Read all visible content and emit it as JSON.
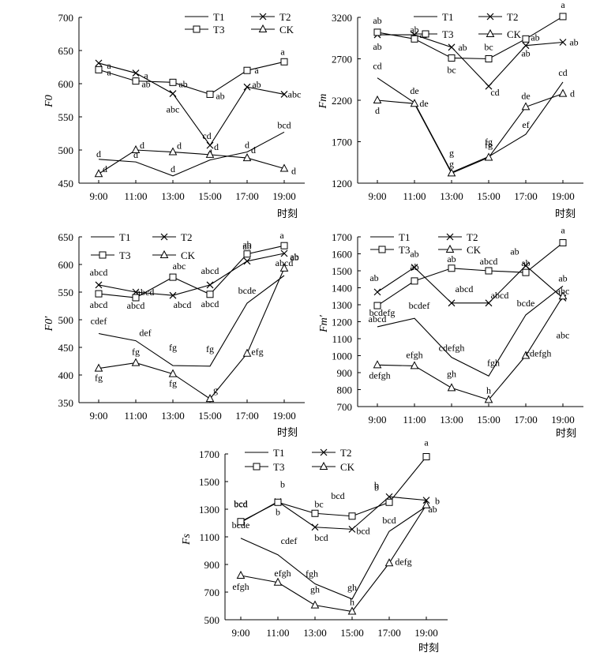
{
  "legend_labels": {
    "T1": "T1",
    "T2": "T2",
    "T3": "T3",
    "CK": "CK"
  },
  "chart_data": [
    {
      "type": "line",
      "ylabel": "F0",
      "xlabel": "时刻",
      "categories": [
        "9:00",
        "11:00",
        "13:00",
        "15:00",
        "17:00",
        "19:00"
      ],
      "ylim": [
        450,
        700
      ],
      "yticks": [
        450,
        500,
        550,
        600,
        650,
        700
      ],
      "legend_position": "top-right",
      "series": [
        {
          "name": "T1",
          "marker": "none",
          "values": [
            486,
            482,
            461,
            485,
            497,
            527
          ],
          "labels": [
            "d",
            "d",
            "d",
            "d",
            "d",
            "bcd"
          ]
        },
        {
          "name": "T2",
          "marker": "x",
          "values": [
            631,
            616,
            585,
            507,
            595,
            584
          ],
          "labels": [
            "a",
            "a",
            "abc",
            "cd",
            "ab",
            "abc"
          ]
        },
        {
          "name": "T3",
          "marker": "square",
          "values": [
            621,
            604,
            602,
            584,
            620,
            633
          ],
          "labels": [
            "a",
            "ab",
            "ab",
            "ab",
            "a",
            "a"
          ]
        },
        {
          "name": "CK",
          "marker": "triangle",
          "values": [
            464,
            500,
            497,
            493,
            488,
            472
          ],
          "labels": [
            "d",
            "d",
            "d",
            "d",
            "d",
            "d"
          ]
        }
      ]
    },
    {
      "type": "line",
      "ylabel": "Fm",
      "xlabel": "时刻",
      "categories": [
        "9:00",
        "11:00",
        "13:00",
        "15:00",
        "17:00",
        "19:00"
      ],
      "ylim": [
        1200,
        3200
      ],
      "yticks": [
        1200,
        1700,
        2200,
        2700,
        3200
      ],
      "legend_position": "top-right",
      "series": [
        {
          "name": "T1",
          "marker": "none",
          "values": [
            2470,
            2170,
            1330,
            1520,
            1790,
            2420
          ],
          "labels": [
            "cd",
            "de",
            "g",
            "fg",
            "ef",
            "cd"
          ]
        },
        {
          "name": "T2",
          "marker": "x",
          "values": [
            2990,
            2990,
            2840,
            2370,
            2860,
            2900
          ],
          "labels": [
            "ab",
            "ab",
            "ab",
            "cd",
            "ab",
            "ab"
          ]
        },
        {
          "name": "T3",
          "marker": "square",
          "values": [
            3020,
            2940,
            2710,
            2700,
            2940,
            3210
          ],
          "labels": [
            "ab",
            "ab",
            "bc",
            "bc",
            "ab",
            "a"
          ]
        },
        {
          "name": "CK",
          "marker": "triangle",
          "values": [
            2200,
            2160,
            1320,
            1510,
            2120,
            2280
          ],
          "labels": [
            "d",
            "de",
            "g",
            "fg",
            "de",
            "d"
          ]
        }
      ]
    },
    {
      "type": "line",
      "ylabel": "F0′",
      "xlabel": "时刻",
      "categories": [
        "9:00",
        "11:00",
        "13:00",
        "15:00",
        "17:00",
        "19:00"
      ],
      "ylim": [
        350,
        650
      ],
      "yticks": [
        350,
        400,
        450,
        500,
        550,
        600,
        650
      ],
      "legend_position": "top-left",
      "series": [
        {
          "name": "T1",
          "marker": "none",
          "values": [
            475,
            462,
            417,
            416,
            530,
            580
          ],
          "labels": [
            "cdef",
            "def",
            "fg",
            "fg",
            "bcde",
            "abcd"
          ]
        },
        {
          "name": "T2",
          "marker": "x",
          "values": [
            563,
            550,
            544,
            563,
            606,
            620
          ],
          "labels": [
            "abcd",
            "abcd",
            "abcd",
            "abcd",
            "ab",
            "ab"
          ]
        },
        {
          "name": "T3",
          "marker": "square",
          "values": [
            547,
            540,
            577,
            546,
            619,
            634
          ],
          "labels": [
            "abcd",
            "abcd",
            "abc",
            "abcd",
            "ab",
            "a"
          ]
        },
        {
          "name": "CK",
          "marker": "triangle",
          "values": [
            412,
            422,
            402,
            357,
            439,
            593
          ],
          "labels": [
            "fg",
            "fg",
            "fg",
            "g",
            "efg",
            "ab"
          ]
        }
      ]
    },
    {
      "type": "line",
      "ylabel": "Fm′",
      "xlabel": "时刻",
      "categories": [
        "9:00",
        "11:00",
        "13:00",
        "15:00",
        "17:00",
        "19:00"
      ],
      "ylim": [
        700,
        1700
      ],
      "yticks": [
        700,
        800,
        900,
        1000,
        1100,
        1200,
        1300,
        1400,
        1500,
        1600,
        1700
      ],
      "legend_position": "top-left",
      "series": [
        {
          "name": "T1",
          "marker": "none",
          "values": [
            1170,
            1220,
            990,
            880,
            1240,
            1410
          ],
          "labels": [
            "bcdefg",
            "bcdef",
            "cdefgh",
            "fgh",
            "bcde",
            "ab"
          ]
        },
        {
          "name": "T2",
          "marker": "x",
          "values": [
            1375,
            1520,
            1310,
            1310,
            1530,
            1340
          ],
          "labels": [
            "ab",
            "ab",
            "abcd",
            "abcd",
            "ab",
            "abc"
          ]
        },
        {
          "name": "T3",
          "marker": "square",
          "values": [
            1295,
            1440,
            1515,
            1500,
            1490,
            1665
          ],
          "labels": [
            "abcd",
            "ab",
            "ab",
            "abcd",
            "ab",
            "a"
          ]
        },
        {
          "name": "CK",
          "marker": "triangle",
          "values": [
            945,
            940,
            810,
            740,
            1000,
            1350
          ],
          "labels": [
            "defgh",
            "efgh",
            "gh",
            "h",
            "cdefgh",
            "abc"
          ]
        }
      ]
    },
    {
      "type": "line",
      "ylabel": "Fs",
      "xlabel": "时刻",
      "categories": [
        "9:00",
        "11:00",
        "13:00",
        "15:00",
        "17:00",
        "19:00"
      ],
      "ylim": [
        500,
        1700
      ],
      "yticks": [
        500,
        700,
        900,
        1100,
        1300,
        1500,
        1700
      ],
      "legend_position": "top-center",
      "series": [
        {
          "name": "T1",
          "marker": "none",
          "values": [
            1090,
            970,
            760,
            650,
            1140,
            1320
          ],
          "labels": [
            "bcde",
            "cdef",
            "fgh",
            "gh",
            "bcd",
            "b"
          ]
        },
        {
          "name": "T2",
          "marker": "x",
          "values": [
            1205,
            1355,
            1170,
            1155,
            1390,
            1365
          ],
          "labels": [
            "bcd",
            "b",
            "bcd",
            "bcd",
            "b",
            "b"
          ]
        },
        {
          "name": "T3",
          "marker": "square",
          "values": [
            1210,
            1350,
            1270,
            1250,
            1350,
            1680
          ],
          "labels": [
            "bcd",
            "b",
            "bc",
            "bcd",
            "b",
            "a"
          ]
        },
        {
          "name": "CK",
          "marker": "triangle",
          "values": [
            820,
            770,
            605,
            560,
            910,
            1330
          ],
          "labels": [
            "efgh",
            "efgh",
            "gh",
            "h",
            "defg",
            "ab"
          ]
        }
      ]
    }
  ]
}
